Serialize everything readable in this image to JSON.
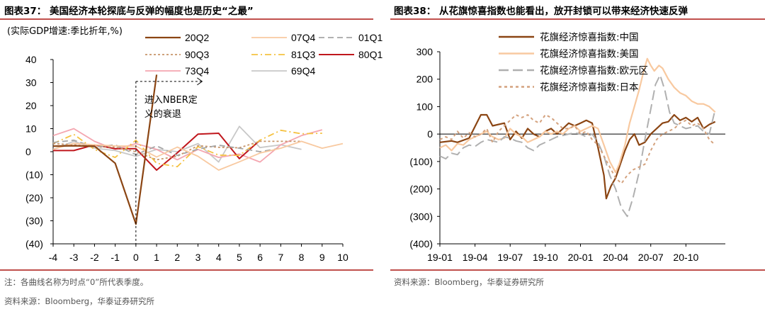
{
  "left": {
    "title": "图表37：  美国经济本轮探底与反弹的幅度也是历史“之最”",
    "footnote": "注：各曲线名称为时点“0”所代表季度。",
    "source": "资料来源：Bloomberg，华泰证券研究所"
  },
  "right": {
    "title": "图表38：  从花旗惊喜指数也能看出，放开封锁可以带来经济快速反弹",
    "source": "资料来源：Bloomberg，华泰证券研究所"
  },
  "colors": {
    "accent_rule": "#c0504d"
  },
  "chart_data": [
    {
      "type": "line",
      "ylabel": "(实际GDP增速:季比折年,%)",
      "x": [
        -4,
        -3,
        -2,
        -1,
        0,
        1,
        2,
        3,
        4,
        5,
        6,
        7,
        8,
        9,
        10
      ],
      "xlim": [
        -4,
        10
      ],
      "ylim": [
        -40,
        40
      ],
      "yticks": [
        "40",
        "30",
        "20",
        "10",
        "0",
        "(10)",
        "(20)",
        "(30)",
        "(40)"
      ],
      "xticks": [
        "-4",
        "-3",
        "-2",
        "-1",
        "0",
        "1",
        "2",
        "3",
        "4",
        "5",
        "6",
        "7",
        "8",
        "9",
        "10"
      ],
      "annotation": "进入NBER定\n义的衰退",
      "legend_position": "top",
      "series": [
        {
          "name": "20Q2",
          "color": "#8b4513",
          "dash": "",
          "width": 2.2,
          "values": [
            2.4,
            2.6,
            2.4,
            -5,
            -31.4,
            33.4,
            null,
            null,
            null,
            null,
            null,
            null,
            null,
            null,
            null
          ]
        },
        {
          "name": "07Q4",
          "color": "#f8c9a0",
          "dash": "",
          "width": 1.8,
          "values": [
            1,
            3.6,
            3,
            2.5,
            2.4,
            -2.3,
            2,
            -2,
            -8,
            -4.4,
            -0.6,
            1.5,
            4.5,
            1.5,
            3.5
          ]
        },
        {
          "name": "01Q1",
          "color": "#a6a6a6",
          "dash": "8,5",
          "width": 1.8,
          "values": [
            4,
            5,
            2,
            3,
            -1.3,
            2.5,
            -1.6,
            1.1,
            2.8,
            1.5,
            0,
            1.5,
            null,
            null,
            null
          ]
        },
        {
          "name": "90Q3",
          "color": "#c8956a",
          "dash": "3,3",
          "width": 1.8,
          "values": [
            3.5,
            3,
            2,
            2,
            0,
            -3.5,
            -2,
            2.6,
            1.9,
            1.7,
            4.5,
            4.5,
            4.5,
            null,
            null
          ]
        },
        {
          "name": "81Q3",
          "color": "#f5c242",
          "dash": "9,4,2,4",
          "width": 1.8,
          "values": [
            3.5,
            7.5,
            1,
            -2.5,
            5,
            -5,
            -6.5,
            2.2,
            -1.5,
            -1.6,
            5,
            9.3,
            7.8,
            8,
            null
          ]
        },
        {
          "name": "80Q1",
          "color": "#c0171d",
          "dash": "",
          "width": 2.0,
          "values": [
            0.5,
            0.5,
            3,
            1.3,
            1.3,
            -8,
            -0.5,
            7.6,
            8,
            -3,
            5,
            null,
            null,
            null,
            null
          ]
        },
        {
          "name": "73Q4",
          "color": "#f4a6b0",
          "dash": "",
          "width": 1.8,
          "values": [
            7,
            10,
            4.5,
            1,
            3.5,
            1,
            -3.5,
            1,
            -2.5,
            -1,
            -4.5,
            3,
            7,
            9.5,
            null
          ]
        },
        {
          "name": "69Q4",
          "color": "#c8c8c8",
          "dash": "",
          "width": 1.8,
          "values": [
            1,
            4.5,
            1.5,
            0.5,
            -2,
            1,
            0,
            3.5,
            -4.5,
            11,
            1.8,
            3,
            1,
            null,
            null
          ]
        }
      ]
    },
    {
      "type": "line",
      "xlabel": "",
      "ylabel": "",
      "xticks": [
        "19-01",
        "19-04",
        "19-07",
        "19-10",
        "20-01",
        "20-04",
        "20-07",
        "20-10"
      ],
      "yticks": [
        "300",
        "200",
        "100",
        "0",
        "(100)",
        "(200)",
        "(300)",
        "(400)"
      ],
      "ylim": [
        -400,
        300
      ],
      "x_months": [
        0,
        23.5
      ],
      "legend_position": "top",
      "series": [
        {
          "name": "花旗经济惊喜指数:中国",
          "color": "#8b4513",
          "dash": "",
          "width": 2.2,
          "values": [
            [
              0,
              -30
            ],
            [
              1,
              -25
            ],
            [
              1.5,
              -30
            ],
            [
              2.5,
              -15
            ],
            [
              3.5,
              70
            ],
            [
              4,
              70
            ],
            [
              4.5,
              30
            ],
            [
              5.5,
              40
            ],
            [
              6,
              -20
            ],
            [
              6.5,
              10
            ],
            [
              7,
              -15
            ],
            [
              7.5,
              20
            ],
            [
              8,
              0
            ],
            [
              8.5,
              -10
            ],
            [
              9,
              10
            ],
            [
              9.5,
              20
            ],
            [
              10,
              0
            ],
            [
              10.5,
              20
            ],
            [
              11,
              40
            ],
            [
              11.5,
              30
            ],
            [
              12,
              40
            ],
            [
              12.5,
              50
            ],
            [
              13,
              40
            ],
            [
              13.5,
              -50
            ],
            [
              14,
              -150
            ],
            [
              14.2,
              -235
            ],
            [
              14.6,
              -190
            ],
            [
              15,
              -160
            ],
            [
              15.4,
              -110
            ],
            [
              15.8,
              -60
            ],
            [
              16.2,
              -20
            ],
            [
              16.6,
              0
            ],
            [
              17,
              -40
            ],
            [
              17.5,
              -30
            ],
            [
              18,
              0
            ],
            [
              18.5,
              20
            ],
            [
              19,
              40
            ],
            [
              19.5,
              45
            ],
            [
              20,
              70
            ],
            [
              20.5,
              50
            ],
            [
              21,
              60
            ],
            [
              21.5,
              45
            ],
            [
              22,
              60
            ],
            [
              22.5,
              20
            ],
            [
              23,
              35
            ],
            [
              23.5,
              45
            ]
          ]
        },
        {
          "name": "花旗经济惊喜指数:美国",
          "color": "#f8c9a0",
          "dash": "",
          "width": 2.2,
          "values": [
            [
              0,
              -50
            ],
            [
              0.5,
              -40
            ],
            [
              1,
              -60
            ],
            [
              1.5,
              -35
            ],
            [
              2,
              -40
            ],
            [
              2.5,
              -20
            ],
            [
              3,
              -10
            ],
            [
              3.5,
              0
            ],
            [
              4,
              10
            ],
            [
              4.5,
              -10
            ],
            [
              5,
              -20
            ],
            [
              5.5,
              -15
            ],
            [
              6,
              20
            ],
            [
              6.5,
              0
            ],
            [
              7,
              -10
            ],
            [
              7.5,
              -30
            ],
            [
              8,
              -20
            ],
            [
              8.5,
              -10
            ],
            [
              9,
              10
            ],
            [
              9.5,
              0
            ],
            [
              10,
              10
            ],
            [
              10.5,
              0
            ],
            [
              11,
              20
            ],
            [
              11.5,
              30
            ],
            [
              12,
              10
            ],
            [
              12.5,
              20
            ],
            [
              13,
              30
            ],
            [
              13.5,
              20
            ],
            [
              14,
              -40
            ],
            [
              14.5,
              -100
            ],
            [
              15,
              -140
            ],
            [
              15.3,
              -110
            ],
            [
              15.8,
              -40
            ],
            [
              16.2,
              40
            ],
            [
              16.6,
              100
            ],
            [
              17,
              160
            ],
            [
              17.4,
              230
            ],
            [
              17.7,
              275
            ],
            [
              18,
              250
            ],
            [
              18.3,
              230
            ],
            [
              18.7,
              250
            ],
            [
              19,
              240
            ],
            [
              19.5,
              200
            ],
            [
              20,
              170
            ],
            [
              20.5,
              150
            ],
            [
              21,
              140
            ],
            [
              21.5,
              120
            ],
            [
              22,
              110
            ],
            [
              22.5,
              110
            ],
            [
              23,
              100
            ],
            [
              23.5,
              80
            ]
          ]
        },
        {
          "name": "花旗经济惊喜指数:欧元区",
          "color": "#b0b0b0",
          "dash": "14,6",
          "width": 2.0,
          "values": [
            [
              0,
              -80
            ],
            [
              0.5,
              -90
            ],
            [
              1,
              -70
            ],
            [
              1.5,
              -75
            ],
            [
              2,
              -50
            ],
            [
              2.5,
              -40
            ],
            [
              3,
              -45
            ],
            [
              3.5,
              -30
            ],
            [
              4,
              -20
            ],
            [
              4.5,
              -25
            ],
            [
              5,
              -30
            ],
            [
              5.5,
              -10
            ],
            [
              6,
              -15
            ],
            [
              6.5,
              -25
            ],
            [
              7,
              -30
            ],
            [
              7.5,
              -50
            ],
            [
              8,
              -60
            ],
            [
              8.5,
              -40
            ],
            [
              9,
              -30
            ],
            [
              9.5,
              -20
            ],
            [
              10,
              -10
            ],
            [
              10.5,
              -5
            ],
            [
              11,
              0
            ],
            [
              11.5,
              5
            ],
            [
              12,
              0
            ],
            [
              12.5,
              -10
            ],
            [
              13,
              0
            ],
            [
              13.5,
              -30
            ],
            [
              14,
              -80
            ],
            [
              14.5,
              -150
            ],
            [
              15,
              -200
            ],
            [
              15.5,
              -270
            ],
            [
              16,
              -300
            ],
            [
              16.5,
              -230
            ],
            [
              17,
              -140
            ],
            [
              17.5,
              -20
            ],
            [
              18,
              90
            ],
            [
              18.4,
              180
            ],
            [
              18.8,
              215
            ],
            [
              19.2,
              160
            ],
            [
              19.6,
              80
            ],
            [
              20,
              40
            ],
            [
              20.5,
              30
            ],
            [
              21,
              20
            ],
            [
              21.5,
              25
            ],
            [
              22,
              30
            ],
            [
              22.5,
              10
            ],
            [
              23,
              0
            ],
            [
              23.5,
              90
            ]
          ]
        },
        {
          "name": "花旗经济惊喜指数:日本",
          "color": "#d4a27e",
          "dash": "4,4",
          "width": 2.0,
          "values": [
            [
              0,
              -20
            ],
            [
              0.5,
              -10
            ],
            [
              1,
              -20
            ],
            [
              1.5,
              10
            ],
            [
              2,
              -15
            ],
            [
              2.5,
              5
            ],
            [
              3,
              -10
            ],
            [
              3.5,
              0
            ],
            [
              4,
              20
            ],
            [
              4.5,
              -30
            ],
            [
              5,
              10
            ],
            [
              5.5,
              30
            ],
            [
              6,
              50
            ],
            [
              6.5,
              70
            ],
            [
              7,
              60
            ],
            [
              7.5,
              70
            ],
            [
              8,
              50
            ],
            [
              8.5,
              40
            ],
            [
              9,
              70
            ],
            [
              9.5,
              60
            ],
            [
              10,
              40
            ],
            [
              10.5,
              20
            ],
            [
              11,
              20
            ],
            [
              11.5,
              30
            ],
            [
              12,
              0
            ],
            [
              12.5,
              10
            ],
            [
              13,
              -20
            ],
            [
              13.5,
              -40
            ],
            [
              14,
              -80
            ],
            [
              14.5,
              -120
            ],
            [
              15,
              -160
            ],
            [
              15.5,
              -180
            ],
            [
              16,
              -150
            ],
            [
              16.5,
              -130
            ],
            [
              17,
              -120
            ],
            [
              17.5,
              -110
            ],
            [
              18,
              -60
            ],
            [
              18.5,
              -20
            ],
            [
              19,
              0
            ],
            [
              19.5,
              10
            ],
            [
              20,
              20
            ],
            [
              20.5,
              40
            ],
            [
              21,
              50
            ],
            [
              21.5,
              30
            ],
            [
              22,
              40
            ],
            [
              22.5,
              20
            ],
            [
              23,
              -20
            ],
            [
              23.5,
              -40
            ]
          ]
        }
      ]
    }
  ]
}
